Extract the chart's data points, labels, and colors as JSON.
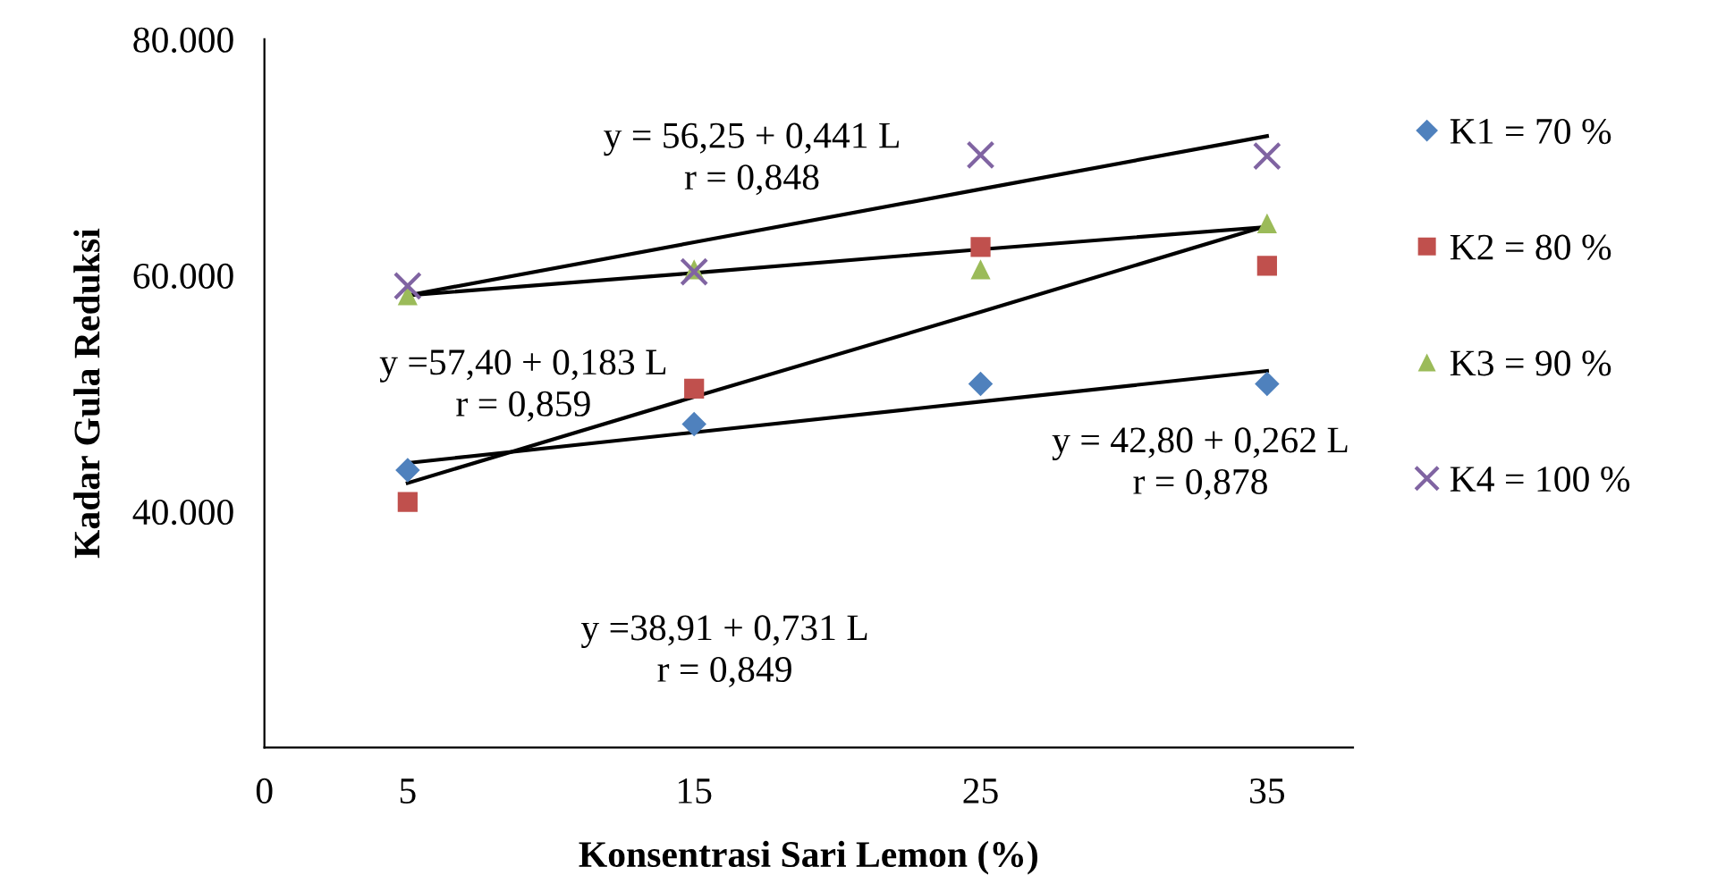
{
  "chart_data": {
    "type": "scatter",
    "xlabel": "Konsentrasi Sari Lemon (%)",
    "ylabel": "Kadar Gula Reduksi",
    "x": [
      5,
      15,
      25,
      35
    ],
    "series": [
      {
        "name": "K1 = 70 %",
        "color": "#4f81bd",
        "marker": "diamond",
        "values": [
          43500,
          47400,
          50800,
          50800
        ]
      },
      {
        "name": "K2 = 80 %",
        "color": "#c0504d",
        "marker": "square",
        "values": [
          40800,
          50400,
          62400,
          60800
        ]
      },
      {
        "name": "K3 = 90 %",
        "color": "#9bbb59",
        "marker": "triangle",
        "values": [
          58300,
          60500,
          60500,
          64400
        ]
      },
      {
        "name": "K4 = 100 %",
        "color": "#8064a2",
        "marker": "cross",
        "values": [
          59100,
          60300,
          70200,
          70100
        ]
      },
      {
        "type": "line",
        "color": "#000000",
        "values": [
          44100,
          46700,
          49300,
          51900
        ]
      },
      {
        "type": "line",
        "color": "#000000",
        "values": [
          42400,
          49700,
          56900,
          64200
        ]
      },
      {
        "type": "line",
        "color": "#000000",
        "values": [
          58300,
          60200,
          62200,
          64100
        ]
      },
      {
        "type": "line",
        "color": "#000000",
        "values": [
          58300,
          62800,
          67300,
          71800
        ]
      }
    ],
    "xlim": [
      0,
      38
    ],
    "xticks": [
      0,
      5,
      15,
      25,
      35
    ],
    "ylim": [
      20000,
      80000
    ],
    "yticks": [
      {
        "value": 40000,
        "label": "40.000"
      },
      {
        "value": 60000,
        "label": "60.000"
      },
      {
        "value": 80000,
        "label": "80.000"
      }
    ],
    "annotations": [
      "y = 56,25 + 0,441 L\nr = 0,848",
      "y =57,40 + 0,183 L\nr = 0,859",
      "y = 42,80 + 0,262 L\nr = 0,878",
      "y =38,91 + 0,731 L\nr = 0,849"
    ],
    "grid": false,
    "legend": "right"
  }
}
